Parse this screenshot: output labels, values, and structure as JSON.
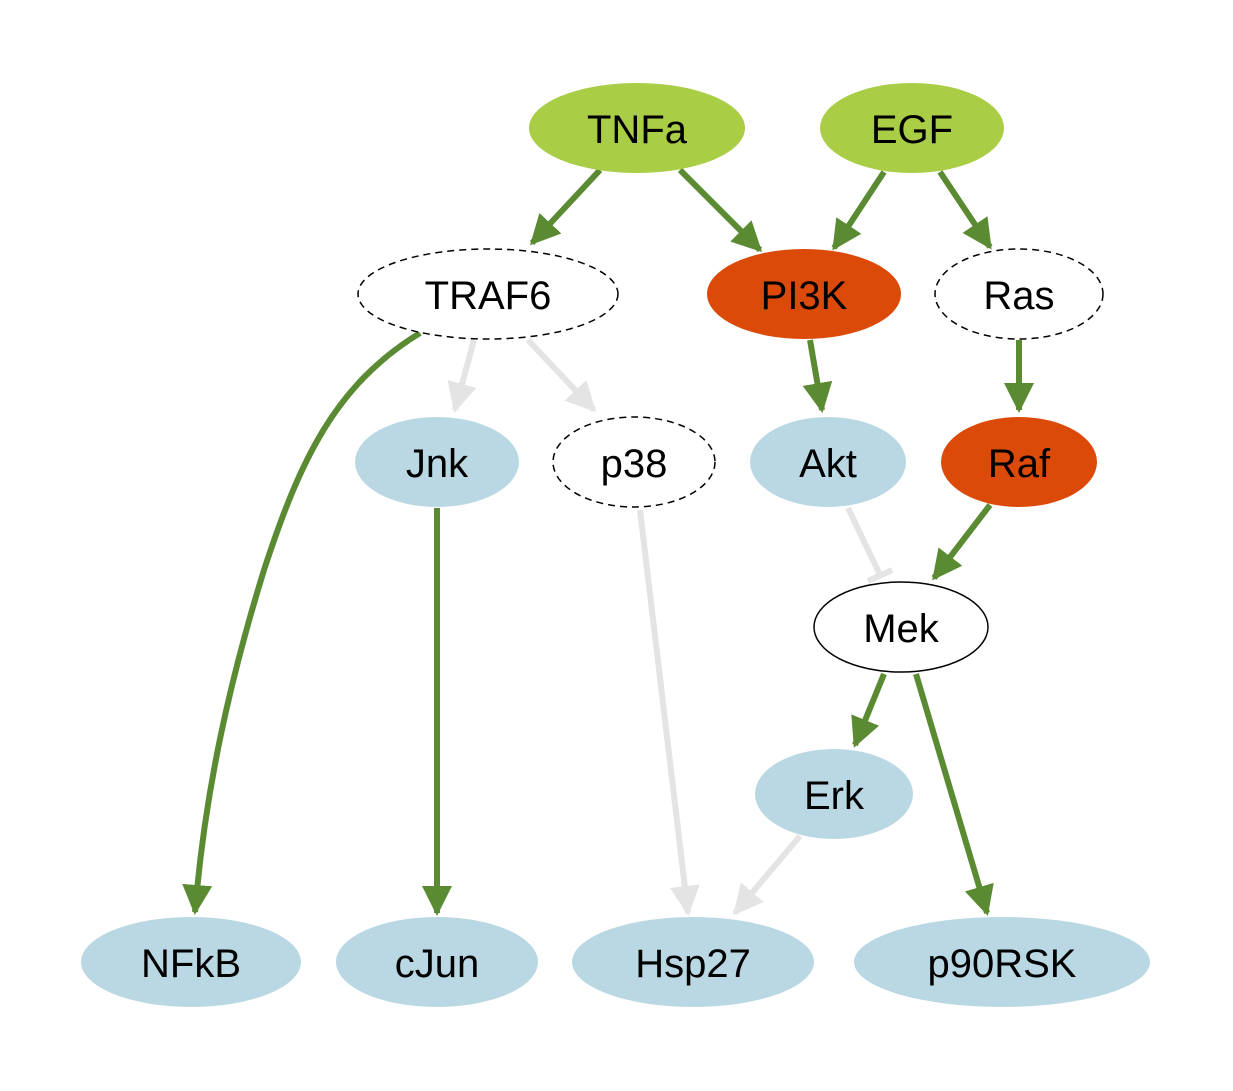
{
  "colors": {
    "input": "#a9cd45",
    "highlight": "#dc4a0a",
    "readout": "#bad8e4",
    "plain": "#ffffff",
    "active_edge": "#5a8a32",
    "inactive_edge": "#e4e4e4",
    "outline": "#000000"
  },
  "nodes": [
    {
      "id": "TNFa",
      "label": "TNFa",
      "style": "input"
    },
    {
      "id": "EGF",
      "label": "EGF",
      "style": "input"
    },
    {
      "id": "TRAF6",
      "label": "TRAF6",
      "style": "dashed"
    },
    {
      "id": "PI3K",
      "label": "PI3K",
      "style": "highlight"
    },
    {
      "id": "Ras",
      "label": "Ras",
      "style": "dashed"
    },
    {
      "id": "Jnk",
      "label": "Jnk",
      "style": "readout"
    },
    {
      "id": "p38",
      "label": "p38",
      "style": "dashed"
    },
    {
      "id": "Akt",
      "label": "Akt",
      "style": "readout"
    },
    {
      "id": "Raf",
      "label": "Raf",
      "style": "highlight"
    },
    {
      "id": "Mek",
      "label": "Mek",
      "style": "solid"
    },
    {
      "id": "Erk",
      "label": "Erk",
      "style": "readout"
    },
    {
      "id": "NFkB",
      "label": "NFkB",
      "style": "readout"
    },
    {
      "id": "cJun",
      "label": "cJun",
      "style": "readout"
    },
    {
      "id": "Hsp27",
      "label": "Hsp27",
      "style": "readout"
    },
    {
      "id": "p90RSK",
      "label": "p90RSK",
      "style": "readout"
    }
  ],
  "edges": [
    {
      "from": "TNFa",
      "to": "TRAF6",
      "type": "activation",
      "active": true
    },
    {
      "from": "TNFa",
      "to": "PI3K",
      "type": "activation",
      "active": true
    },
    {
      "from": "EGF",
      "to": "PI3K",
      "type": "activation",
      "active": true
    },
    {
      "from": "EGF",
      "to": "Ras",
      "type": "activation",
      "active": true
    },
    {
      "from": "TRAF6",
      "to": "NFkB",
      "type": "activation",
      "active": true
    },
    {
      "from": "TRAF6",
      "to": "Jnk",
      "type": "activation",
      "active": false
    },
    {
      "from": "TRAF6",
      "to": "p38",
      "type": "activation",
      "active": false
    },
    {
      "from": "PI3K",
      "to": "Akt",
      "type": "activation",
      "active": true
    },
    {
      "from": "Ras",
      "to": "Raf",
      "type": "activation",
      "active": true
    },
    {
      "from": "Jnk",
      "to": "cJun",
      "type": "activation",
      "active": true
    },
    {
      "from": "p38",
      "to": "Hsp27",
      "type": "activation",
      "active": false
    },
    {
      "from": "Akt",
      "to": "Mek",
      "type": "inhibition",
      "active": false
    },
    {
      "from": "Raf",
      "to": "Mek",
      "type": "activation",
      "active": true
    },
    {
      "from": "Mek",
      "to": "Erk",
      "type": "activation",
      "active": true
    },
    {
      "from": "Mek",
      "to": "p90RSK",
      "type": "activation",
      "active": true
    },
    {
      "from": "Erk",
      "to": "Hsp27",
      "type": "activation",
      "active": false
    }
  ]
}
